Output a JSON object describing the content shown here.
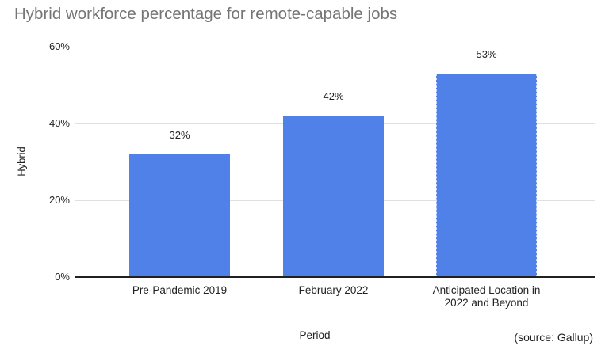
{
  "chart_data": {
    "type": "bar",
    "title": "Hybrid workforce percentage for remote-capable jobs",
    "categories": [
      "Pre-Pandemic 2019",
      "February 2022",
      "Anticipated Location in 2022 and Beyond"
    ],
    "values": [
      32,
      42,
      53
    ],
    "data_labels": [
      "32%",
      "42%",
      "53%"
    ],
    "xlabel": "Period",
    "ylabel": "Hybrid",
    "ylim": [
      0,
      60
    ],
    "yticks": [
      0,
      20,
      40,
      60
    ],
    "ytick_labels": [
      "0%",
      "20%",
      "40%",
      "60%"
    ],
    "grid": true,
    "legend": "none",
    "bar_color": "#4f81e8",
    "dashed_outline_bar_index": 2,
    "source": "(source: Gallup)"
  },
  "colors": {
    "bar": "#4f81e8",
    "title_text": "#757575",
    "axis_text": "#222222",
    "gridline": "#e0e0e0",
    "axis_line": "#212121",
    "background": "#ffffff"
  }
}
